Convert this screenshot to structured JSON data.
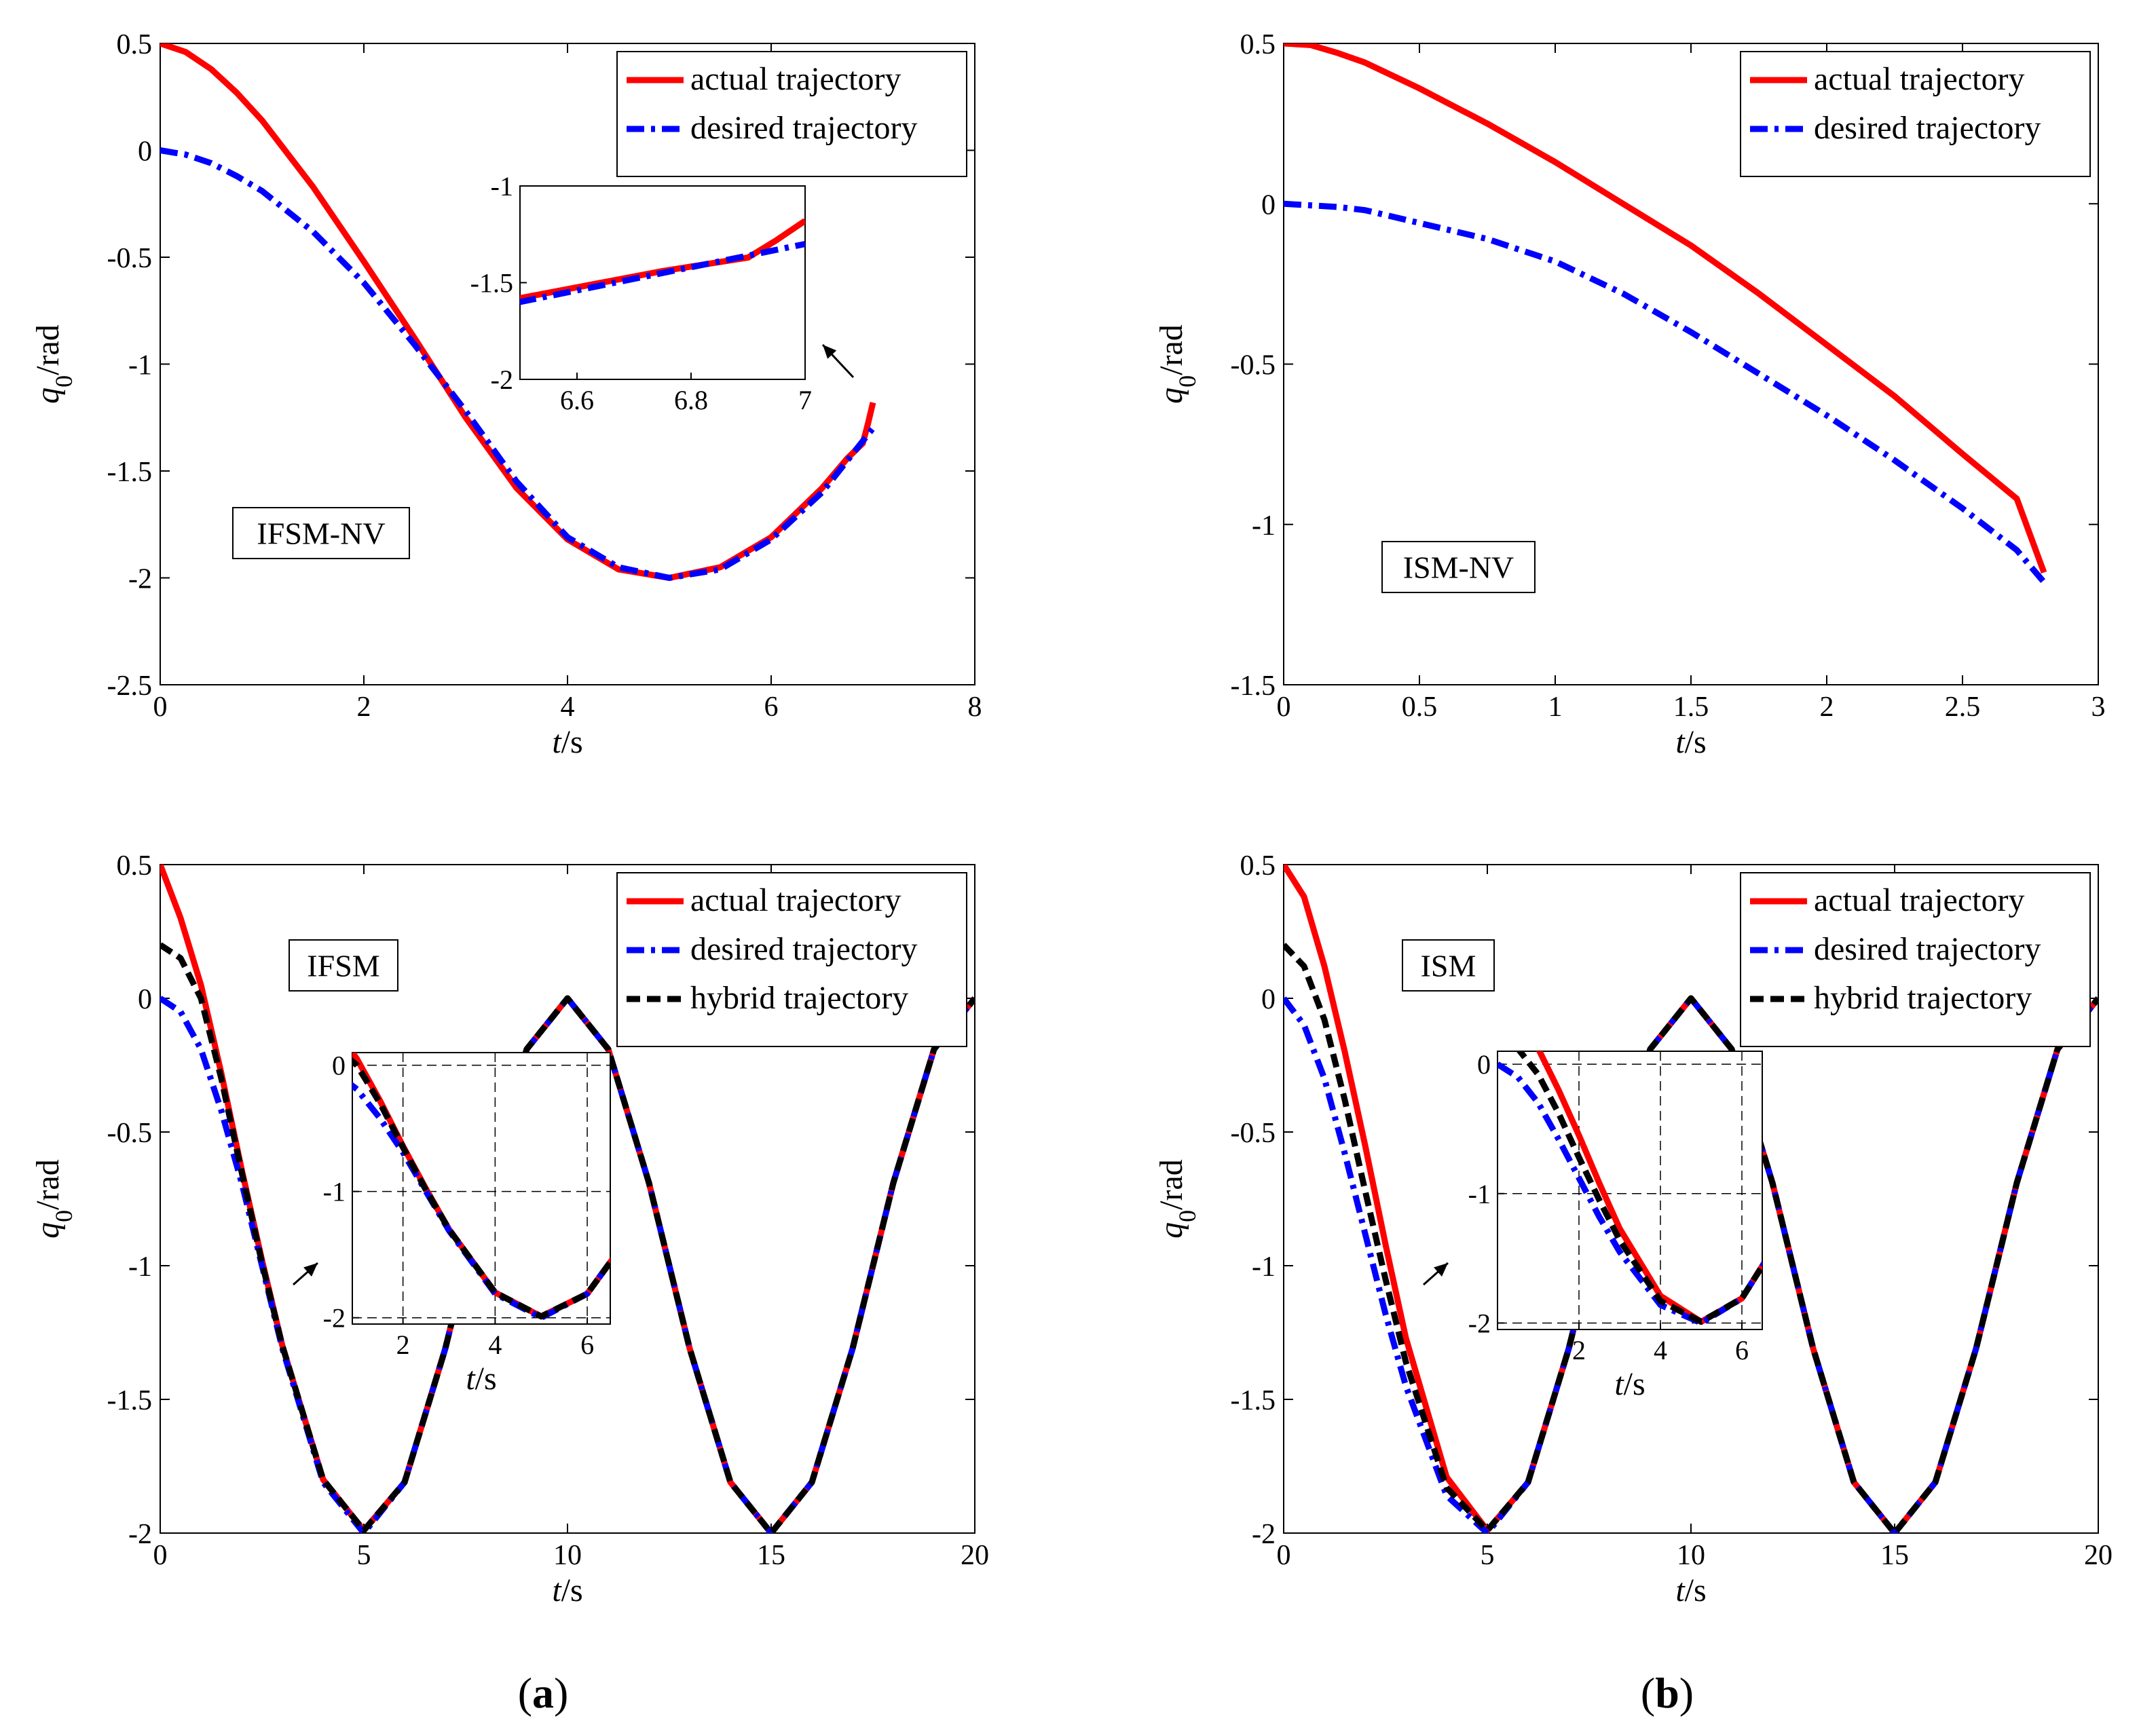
{
  "figure": {
    "panel_labels": [
      {
        "open": "(",
        "letter": "a",
        "close": ")"
      },
      {
        "open": "(",
        "letter": "b",
        "close": ")"
      }
    ]
  },
  "colors": {
    "actual": "#ff0000",
    "desired": "#0000ff",
    "hybrid": "#000000"
  },
  "chart_data": [
    {
      "type": "line",
      "id": "ifsm-nv",
      "annotation": "IFSM-NV",
      "xlabel": {
        "italic": "t",
        "unit": "/s"
      },
      "ylabel": {
        "italic": "q",
        "sub": "0",
        "unit": "/rad"
      },
      "xlim": [
        0,
        8
      ],
      "ylim": [
        -2.5,
        0.5
      ],
      "xticks": [
        0,
        2,
        4,
        6,
        8
      ],
      "xtick_labels": [
        "0",
        "2",
        "4",
        "6",
        "8"
      ],
      "yticks": [
        0.5,
        0,
        -0.5,
        -1,
        -1.5,
        -2,
        -2.5
      ],
      "ytick_labels": [
        "0.5",
        "0",
        "-0.5",
        "-1",
        "-1.5",
        "-2",
        "-2.5"
      ],
      "legend": [
        "actual trajectory",
        "desired trajectory"
      ],
      "legend_position": "top-right",
      "series": [
        {
          "name": "actual trajectory",
          "style": "actual",
          "x": [
            0,
            0.25,
            0.5,
            0.75,
            1,
            1.5,
            2,
            2.5,
            3,
            3.5,
            4,
            4.5,
            5,
            5.5,
            6,
            6.5,
            6.75,
            6.9,
            6.95,
            7
          ],
          "y": [
            0.5,
            0.46,
            0.38,
            0.27,
            0.14,
            -0.17,
            -0.52,
            -0.88,
            -1.25,
            -1.58,
            -1.82,
            -1.96,
            -2.0,
            -1.95,
            -1.81,
            -1.58,
            -1.44,
            -1.37,
            -1.28,
            -1.18
          ]
        },
        {
          "name": "desired trajectory",
          "style": "desired",
          "x": [
            0,
            0.25,
            0.5,
            0.75,
            1,
            1.5,
            2,
            2.5,
            3,
            3.5,
            4,
            4.5,
            5,
            5.5,
            6,
            6.5,
            7
          ],
          "y": [
            0,
            -0.02,
            -0.06,
            -0.12,
            -0.19,
            -0.38,
            -0.62,
            -0.91,
            -1.22,
            -1.55,
            -1.81,
            -1.95,
            -2.0,
            -1.96,
            -1.82,
            -1.6,
            -1.3
          ]
        }
      ],
      "inset": {
        "xlim": [
          6.5,
          7
        ],
        "ylim": [
          -2,
          -1
        ],
        "xticks": [
          6.6,
          6.8,
          7
        ],
        "xtick_labels": [
          "6.6",
          "6.8",
          "7"
        ],
        "yticks": [
          -1,
          -1.5,
          -2
        ],
        "ytick_labels": [
          "-1",
          "-1.5",
          "-2"
        ],
        "grid": false,
        "xlabel": null
      }
    },
    {
      "type": "line",
      "id": "ism-nv",
      "annotation": "ISM-NV",
      "xlabel": {
        "italic": "t",
        "unit": "/s"
      },
      "ylabel": {
        "italic": "q",
        "sub": "0",
        "unit": "/rad"
      },
      "xlim": [
        0,
        3
      ],
      "ylim": [
        -1.5,
        0.5
      ],
      "xticks": [
        0,
        0.5,
        1,
        1.5,
        2,
        2.5,
        3
      ],
      "xtick_labels": [
        "0",
        "0.5",
        "1",
        "1.5",
        "2",
        "2.5",
        "3"
      ],
      "yticks": [
        0.5,
        0,
        -0.5,
        -1,
        -1.5
      ],
      "ytick_labels": [
        "0.5",
        "0",
        "-0.5",
        "-1",
        "-1.5"
      ],
      "legend": [
        "actual trajectory",
        "desired trajectory"
      ],
      "legend_position": "top-right",
      "series": [
        {
          "name": "actual trajectory",
          "style": "actual",
          "x": [
            0,
            0.1,
            0.2,
            0.3,
            0.5,
            0.75,
            1,
            1.25,
            1.5,
            1.75,
            2,
            2.25,
            2.5,
            2.7,
            2.8
          ],
          "y": [
            0.5,
            0.495,
            0.47,
            0.44,
            0.36,
            0.25,
            0.13,
            0.0,
            -0.13,
            -0.28,
            -0.44,
            -0.6,
            -0.78,
            -0.92,
            -1.15
          ]
        },
        {
          "name": "desired trajectory",
          "style": "desired",
          "x": [
            0,
            0.1,
            0.2,
            0.3,
            0.5,
            0.75,
            1,
            1.25,
            1.5,
            1.75,
            2,
            2.25,
            2.5,
            2.7,
            2.8
          ],
          "y": [
            0,
            -0.005,
            -0.01,
            -0.02,
            -0.06,
            -0.11,
            -0.18,
            -0.28,
            -0.4,
            -0.53,
            -0.66,
            -0.8,
            -0.95,
            -1.08,
            -1.18
          ]
        }
      ]
    },
    {
      "type": "line",
      "id": "ifsm",
      "annotation": "IFSM",
      "xlabel": {
        "italic": "t",
        "unit": "/s"
      },
      "ylabel": {
        "italic": "q",
        "sub": "0",
        "unit": "/rad"
      },
      "xlim": [
        0,
        20
      ],
      "ylim": [
        -2,
        0.5
      ],
      "xticks": [
        0,
        5,
        10,
        15,
        20
      ],
      "xtick_labels": [
        "0",
        "5",
        "10",
        "15",
        "20"
      ],
      "yticks": [
        0.5,
        0,
        -0.5,
        -1,
        -1.5,
        -2
      ],
      "ytick_labels": [
        "0.5",
        "0",
        "-0.5",
        "-1",
        "-1.5",
        "-2"
      ],
      "legend": [
        "actual trajectory",
        "desired trajectory",
        "hybrid trajectory"
      ],
      "legend_position": "top-right",
      "series": [
        {
          "name": "actual trajectory",
          "style": "actual",
          "x": [
            0,
            0.5,
            1,
            1.5,
            2,
            2.5,
            3,
            4,
            5,
            6,
            7,
            8,
            9,
            10,
            11,
            12,
            13,
            14,
            15,
            16,
            17,
            18,
            19,
            20
          ],
          "y": [
            0.5,
            0.3,
            0.05,
            -0.28,
            -0.64,
            -0.98,
            -1.3,
            -1.8,
            -1.99,
            -1.81,
            -1.31,
            -0.69,
            -0.19,
            0.0,
            -0.19,
            -0.69,
            -1.31,
            -1.81,
            -2.0,
            -1.81,
            -1.31,
            -0.69,
            -0.19,
            0.0
          ]
        },
        {
          "name": "desired trajectory",
          "style": "desired",
          "x": [
            0,
            0.5,
            1,
            1.5,
            2,
            2.5,
            3,
            4,
            5,
            6,
            7,
            8,
            9,
            10,
            11,
            12,
            13,
            14,
            15,
            16,
            17,
            18,
            19,
            20
          ],
          "y": [
            0,
            -0.05,
            -0.19,
            -0.42,
            -0.69,
            -1.0,
            -1.31,
            -1.81,
            -2.0,
            -1.81,
            -1.31,
            -0.69,
            -0.19,
            0.0,
            -0.19,
            -0.69,
            -1.31,
            -1.81,
            -2.0,
            -1.81,
            -1.31,
            -0.69,
            -0.19,
            0.0
          ]
        },
        {
          "name": "hybrid trajectory",
          "style": "hybrid",
          "x": [
            0,
            0.5,
            1,
            1.5,
            2,
            2.5,
            3,
            4,
            5,
            6,
            7,
            8,
            9,
            10,
            11,
            12,
            13,
            14,
            15,
            16,
            17,
            18,
            19,
            20
          ],
          "y": [
            0.2,
            0.15,
            0.0,
            -0.3,
            -0.65,
            -0.99,
            -1.3,
            -1.8,
            -1.99,
            -1.81,
            -1.31,
            -0.69,
            -0.19,
            0.0,
            -0.19,
            -0.69,
            -1.31,
            -1.81,
            -2.0,
            -1.81,
            -1.31,
            -0.69,
            -0.19,
            0.0
          ]
        }
      ],
      "inset": {
        "xlim": [
          0.9,
          6.5
        ],
        "ylim": [
          -2.05,
          0.1
        ],
        "xticks": [
          2,
          4,
          6
        ],
        "xtick_labels": [
          "2",
          "4",
          "6"
        ],
        "yticks": [
          0,
          -1,
          -2
        ],
        "ytick_labels": [
          "0",
          "-1",
          "-2"
        ],
        "grid": true,
        "xlabel": {
          "italic": "t",
          "unit": "/s"
        }
      }
    },
    {
      "type": "line",
      "id": "ism",
      "annotation": "ISM",
      "xlabel": {
        "italic": "t",
        "unit": "/s"
      },
      "ylabel": {
        "italic": "q",
        "sub": "0",
        "unit": "/rad"
      },
      "xlim": [
        0,
        20
      ],
      "ylim": [
        -2,
        0.5
      ],
      "xticks": [
        0,
        5,
        10,
        15,
        20
      ],
      "xtick_labels": [
        "0",
        "5",
        "10",
        "15",
        "20"
      ],
      "yticks": [
        0.5,
        0,
        -0.5,
        -1,
        -1.5,
        -2
      ],
      "ytick_labels": [
        "0.5",
        "0",
        "-0.5",
        "-1",
        "-1.5",
        "-2"
      ],
      "legend": [
        "actual trajectory",
        "desired trajectory",
        "hybrid trajectory"
      ],
      "legend_position": "top-right",
      "series": [
        {
          "name": "actual trajectory",
          "style": "actual",
          "x": [
            0,
            0.5,
            1,
            1.5,
            2,
            2.5,
            3,
            4,
            5,
            6,
            7,
            8,
            9,
            10,
            11,
            12,
            13,
            14,
            15,
            16,
            17,
            18,
            19,
            20
          ],
          "y": [
            0.5,
            0.38,
            0.12,
            -0.2,
            -0.55,
            -0.92,
            -1.27,
            -1.79,
            -1.99,
            -1.81,
            -1.31,
            -0.69,
            -0.19,
            0.0,
            -0.19,
            -0.69,
            -1.31,
            -1.81,
            -2.0,
            -1.81,
            -1.31,
            -0.69,
            -0.19,
            0.0
          ]
        },
        {
          "name": "desired trajectory",
          "style": "desired",
          "x": [
            0,
            0.5,
            1,
            1.5,
            2,
            2.5,
            3,
            4,
            5,
            6,
            7,
            8,
            9,
            10,
            11,
            12,
            13,
            14,
            15,
            16,
            17,
            18,
            19,
            20
          ],
          "y": [
            0,
            -0.1,
            -0.3,
            -0.58,
            -0.88,
            -1.18,
            -1.45,
            -1.86,
            -2.0,
            -1.81,
            -1.31,
            -0.69,
            -0.19,
            0.0,
            -0.19,
            -0.69,
            -1.31,
            -1.81,
            -2.0,
            -1.81,
            -1.31,
            -0.69,
            -0.19,
            0.0
          ]
        },
        {
          "name": "hybrid trajectory",
          "style": "hybrid",
          "x": [
            0,
            0.5,
            1,
            1.5,
            2,
            2.5,
            3,
            4,
            5,
            6,
            7,
            8,
            9,
            10,
            11,
            12,
            13,
            14,
            15,
            16,
            17,
            18,
            19,
            20
          ],
          "y": [
            0.2,
            0.12,
            -0.08,
            -0.38,
            -0.72,
            -1.05,
            -1.36,
            -1.83,
            -1.99,
            -1.81,
            -1.31,
            -0.69,
            -0.19,
            0.0,
            -0.19,
            -0.69,
            -1.31,
            -1.81,
            -2.0,
            -1.81,
            -1.31,
            -0.69,
            -0.19,
            0.0
          ]
        }
      ],
      "inset": {
        "xlim": [
          0,
          6.5
        ],
        "ylim": [
          -2.05,
          0.1
        ],
        "xticks": [
          2,
          4,
          6
        ],
        "xtick_labels": [
          "2",
          "4",
          "6"
        ],
        "yticks": [
          0,
          -1,
          -2
        ],
        "ytick_labels": [
          "0",
          "-1",
          "-2"
        ],
        "grid": true,
        "xlabel": {
          "italic": "t",
          "unit": "/s"
        }
      }
    }
  ]
}
